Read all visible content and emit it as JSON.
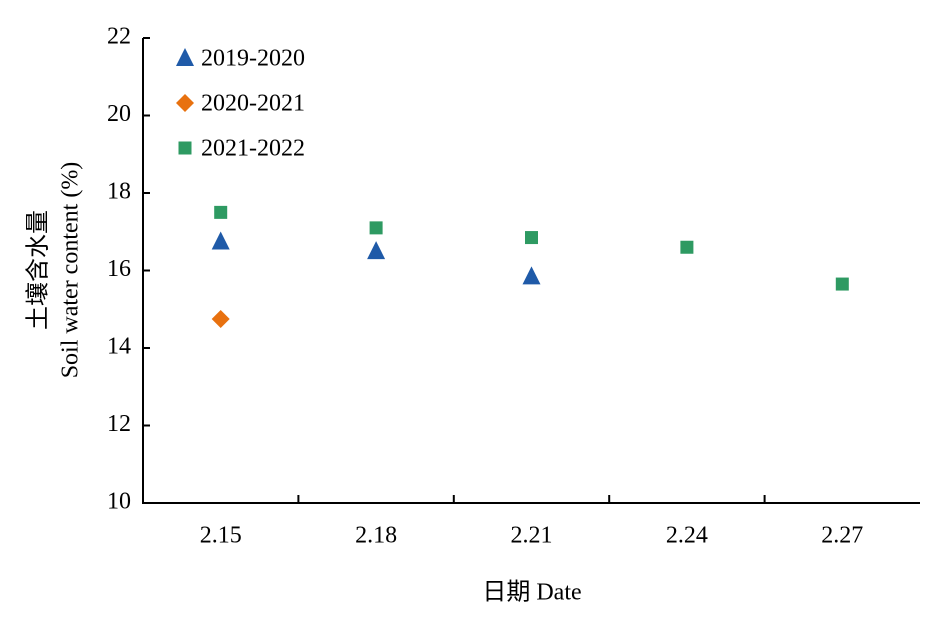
{
  "chart_data": {
    "type": "scatter",
    "x_label": "日期 Date",
    "y_label": [
      "土壤含水量",
      "Soil water content (%)"
    ],
    "categories": [
      "2.15",
      "2.18",
      "2.21",
      "2.24",
      "2.27"
    ],
    "series": [
      {
        "name": "2019-2020",
        "color": "#1f5aa8",
        "marker": "triangle",
        "values": [
          16.75,
          16.5,
          15.85,
          null,
          null
        ]
      },
      {
        "name": "2020-2021",
        "color": "#e8710f",
        "marker": "diamond",
        "values": [
          14.75,
          null,
          null,
          null,
          null
        ]
      },
      {
        "name": "2021-2022",
        "color": "#2e9a62",
        "marker": "square",
        "values": [
          17.5,
          17.1,
          16.85,
          16.6,
          15.65
        ]
      }
    ],
    "ylim": [
      10,
      22
    ],
    "yticks": [
      10,
      12,
      14,
      16,
      18,
      20,
      22
    ],
    "legend": "upper-left",
    "grid": false
  }
}
